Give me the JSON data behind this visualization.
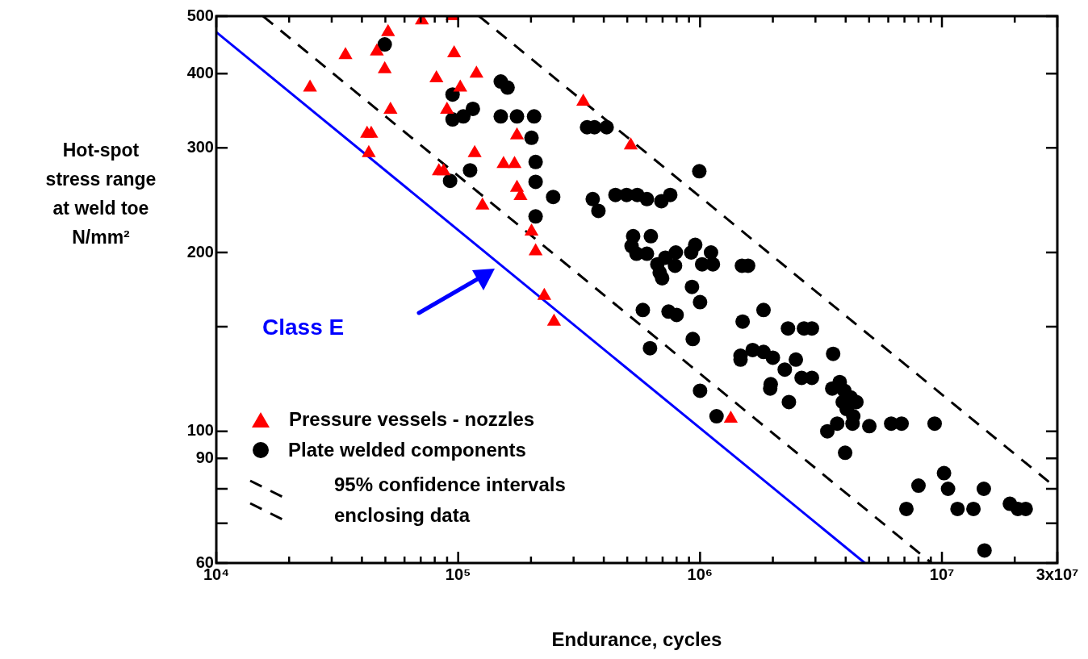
{
  "chart_data": {
    "type": "scatter",
    "xlabel": "Endurance, cycles",
    "ylabel": "Hot-spot\nstress range\nat weld toe\nN/mm²",
    "log": "xy",
    "grid": false,
    "legend": "bottom left",
    "xlim": [
      10000,
      30000000
    ],
    "ylim": [
      60,
      500
    ],
    "xticks": [
      {
        "value": 10000,
        "label": "10⁴"
      },
      {
        "value": 20000,
        "label": null
      },
      {
        "value": 30000,
        "label": null
      },
      {
        "value": 40000,
        "label": null
      },
      {
        "value": 50000,
        "label": null
      },
      {
        "value": 60000,
        "label": null
      },
      {
        "value": 70000,
        "label": null
      },
      {
        "value": 80000,
        "label": null
      },
      {
        "value": 90000,
        "label": null
      },
      {
        "value": 100000,
        "label": "10⁵"
      },
      {
        "value": 200000,
        "label": null
      },
      {
        "value": 300000,
        "label": null
      },
      {
        "value": 400000,
        "label": null
      },
      {
        "value": 500000,
        "label": null
      },
      {
        "value": 600000,
        "label": null
      },
      {
        "value": 700000,
        "label": null
      },
      {
        "value": 800000,
        "label": null
      },
      {
        "value": 900000,
        "label": null
      },
      {
        "value": 1000000,
        "label": "10⁶"
      },
      {
        "value": 2000000,
        "label": null
      },
      {
        "value": 3000000,
        "label": null
      },
      {
        "value": 4000000,
        "label": null
      },
      {
        "value": 5000000,
        "label": null
      },
      {
        "value": 6000000,
        "label": null
      },
      {
        "value": 7000000,
        "label": null
      },
      {
        "value": 8000000,
        "label": null
      },
      {
        "value": 9000000,
        "label": null
      },
      {
        "value": 10000000,
        "label": "10⁷"
      },
      {
        "value": 20000000,
        "label": null
      },
      {
        "value": 30000000,
        "label": "3x10⁷"
      }
    ],
    "yticks": [
      60,
      {
        "value": 70,
        "label": null
      },
      {
        "value": 80,
        "label": null
      },
      90,
      100,
      {
        "value": 150,
        "label": null
      },
      200,
      300,
      400,
      500
    ],
    "series": [
      {
        "name": "Pressure vessels - nozzles",
        "marker": "triangle",
        "color": "#ff0000",
        "x": [
          24400,
          34200,
          46100,
          51300,
          49700,
          52500,
          42000,
          43700,
          42700,
          70800,
          94800,
          96200,
          81300,
          119000,
          102000,
          89900,
          117000,
          83200,
          87100,
          126000,
          154000,
          171000,
          175000,
          175000,
          181000,
          201000,
          209000,
          227000,
          249000,
          329000,
          517000,
          1340000
        ],
        "values": [
          379,
          430,
          436,
          470,
          407,
          348,
          317,
          317,
          294,
          492,
          500,
          433,
          393,
          400,
          379,
          348,
          294,
          274,
          274,
          240,
          282,
          282,
          315,
          257,
          249,
          217,
          201,
          169,
          153,
          359,
          303,
          105
        ]
      },
      {
        "name": "Plate welded components",
        "marker": "circle",
        "color": "#000000",
        "x": [
          49700,
          94800,
          94800,
          105000,
          115000,
          112000,
          92600,
          150000,
          160000,
          150000,
          175000,
          206000,
          201000,
          209000,
          209000,
          209000,
          247000,
          341000,
          366000,
          411000,
          360000,
          380000,
          447000,
          497000,
          550000,
          603000,
          692000,
          753000,
          993000,
          529000,
          626000,
          521000,
          546000,
          603000,
          794000,
          955000,
          919000,
          1110000,
          1020000,
          1130000,
          719000,
          666000,
          681000,
          697000,
          788000,
          926000,
          1000000,
          580000,
          741000,
          800000,
          933000,
          621000,
          1000000,
          1500000,
          1830000,
          1490000,
          1580000,
          2310000,
          2690000,
          2900000,
          1650000,
          1830000,
          2000000,
          1470000,
          1470000,
          2490000,
          3550000,
          2240000,
          2630000,
          2900000,
          1960000,
          1950000,
          2330000,
          3780000,
          3520000,
          3950000,
          4200000,
          4430000,
          3890000,
          4040000,
          4300000,
          4270000,
          3690000,
          3360000,
          5010000,
          6170000,
          6810000,
          9330000,
          3980000,
          1170000,
          10200000,
          8000000,
          10600000,
          14900000,
          7130000,
          11600000,
          13500000,
          19100000,
          20600000,
          22200000,
          15000000
        ],
        "values": [
          448,
          369,
          335,
          339,
          349,
          275,
          264,
          388,
          379,
          339,
          339,
          339,
          312,
          284,
          263,
          230,
          248,
          325,
          325,
          325,
          246,
          235,
          250,
          250,
          250,
          246,
          244,
          250,
          274,
          213,
          213,
          205,
          199,
          199,
          200,
          206,
          200,
          200,
          191,
          191,
          196,
          191,
          185,
          181,
          190,
          175,
          165,
          160,
          159,
          157,
          143,
          138,
          117,
          153,
          160,
          190,
          190,
          149,
          149,
          149,
          137,
          136,
          133,
          134,
          132,
          132,
          135,
          127,
          123,
          123,
          120,
          118,
          112,
          121,
          118,
          117,
          114,
          112,
          112,
          109,
          106,
          103,
          103,
          100,
          102,
          103,
          103,
          103,
          92,
          106,
          85,
          81,
          80,
          80,
          74,
          74,
          74,
          75.5,
          74,
          74,
          63
        ]
      },
      {
        "name": "Class E",
        "type": "line",
        "marker": "none",
        "line_style": "solid",
        "color": "#0000ff",
        "x": [
          10000,
          4800000
        ],
        "values": [
          470,
          60
        ]
      },
      {
        "name": "95% confidence intervals enclosing data",
        "type": "line",
        "marker": "none",
        "line_style": "dashed",
        "color": "#000000",
        "x": [
          15600,
          9050000
        ],
        "values": [
          500,
          60
        ]
      },
      {
        "type": "line",
        "marker": "none",
        "line_style": "dashed",
        "color": "#000000",
        "x": [
          122000,
          30000000
        ],
        "values": [
          500,
          80
        ]
      }
    ]
  }
}
